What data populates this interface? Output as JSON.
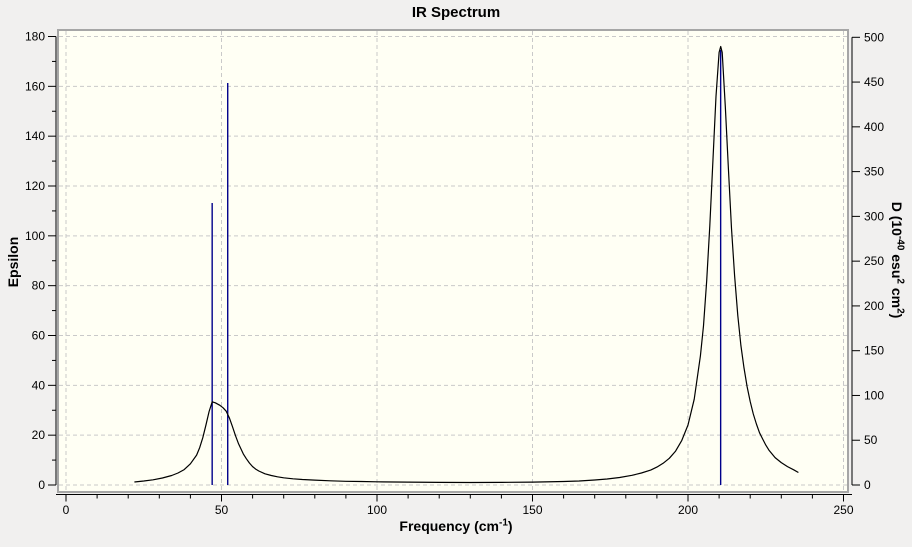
{
  "window": {
    "background": "#f1f0ef"
  },
  "chart_data": {
    "type": "line",
    "title": "IR Spectrum",
    "plot_bg": "#fffff4",
    "frame_color": "#a6a6a6",
    "axis_color": "#000000",
    "grid": {
      "style": "dashed",
      "color": "#c9c9c9"
    },
    "x_axis": {
      "label_parts": [
        {
          "t": "Frequency (cm"
        },
        {
          "t": "-1",
          "sup": true
        },
        {
          "t": ")"
        }
      ],
      "min": 0,
      "max": 250,
      "major_ticks": [
        0,
        50,
        100,
        150,
        200,
        250
      ],
      "minor_step": 10
    },
    "y_left": {
      "label": "Epsilon",
      "min": 0,
      "max": 180,
      "major_ticks": [
        0,
        20,
        40,
        60,
        80,
        100,
        120,
        140,
        160,
        180
      ],
      "minor_step": 10
    },
    "y_right": {
      "label_parts": [
        {
          "t": "D (10"
        },
        {
          "t": "-40",
          "sup": true
        },
        {
          "t": " esu"
        },
        {
          "t": "2",
          "sup": true
        },
        {
          "t": " cm"
        },
        {
          "t": "2",
          "sup": true
        },
        {
          "t": ")"
        }
      ],
      "min": 0,
      "max": 500,
      "major_ticks": [
        0,
        50,
        100,
        150,
        200,
        250,
        300,
        350,
        400,
        450,
        500
      ],
      "minor_step": 0
    },
    "series": [
      {
        "name": "dipole-strength-sticks",
        "type": "stick",
        "axis": "right",
        "color": "#00008b",
        "points": [
          [
            47,
            315
          ],
          [
            52,
            449
          ],
          [
            210.5,
            486
          ]
        ]
      },
      {
        "name": "epsilon-curve",
        "type": "line",
        "axis": "left",
        "color": "#000000",
        "points": [
          [
            22,
            1.2
          ],
          [
            25,
            1.6
          ],
          [
            28,
            2.1
          ],
          [
            31,
            2.8
          ],
          [
            34,
            3.8
          ],
          [
            36,
            4.8
          ],
          [
            38,
            6.2
          ],
          [
            40,
            8.5
          ],
          [
            42,
            12
          ],
          [
            43,
            15
          ],
          [
            44,
            19
          ],
          [
            45,
            24
          ],
          [
            46,
            29.5
          ],
          [
            47,
            33.4
          ],
          [
            48,
            33
          ],
          [
            49.5,
            32
          ],
          [
            50.5,
            31
          ],
          [
            51.5,
            29.6
          ],
          [
            52.5,
            27
          ],
          [
            53.5,
            23.5
          ],
          [
            54.5,
            19.8
          ],
          [
            55.5,
            16.5
          ],
          [
            57,
            12.5
          ],
          [
            58,
            10.5
          ],
          [
            59,
            8.8
          ],
          [
            60,
            7.4
          ],
          [
            61,
            6.4
          ],
          [
            62,
            5.6
          ],
          [
            64,
            4.5
          ],
          [
            66,
            3.8
          ],
          [
            68,
            3.3
          ],
          [
            70,
            2.9
          ],
          [
            73,
            2.5
          ],
          [
            76,
            2.2
          ],
          [
            80,
            1.95
          ],
          [
            85,
            1.7
          ],
          [
            90,
            1.5
          ],
          [
            95,
            1.4
          ],
          [
            100,
            1.3
          ],
          [
            110,
            1.15
          ],
          [
            120,
            1.05
          ],
          [
            130,
            1.0
          ],
          [
            140,
            1.05
          ],
          [
            150,
            1.15
          ],
          [
            160,
            1.4
          ],
          [
            165,
            1.6
          ],
          [
            170,
            2.0
          ],
          [
            174,
            2.4
          ],
          [
            178,
            3.0
          ],
          [
            182,
            3.9
          ],
          [
            185,
            4.8
          ],
          [
            188,
            6.0
          ],
          [
            190,
            7.2
          ],
          [
            192,
            8.7
          ],
          [
            194,
            10.7
          ],
          [
            196,
            13.6
          ],
          [
            198,
            17.9
          ],
          [
            200,
            24.1
          ],
          [
            202,
            34.4
          ],
          [
            204,
            51.8
          ],
          [
            205,
            63.9
          ],
          [
            206,
            82
          ],
          [
            207,
            104
          ],
          [
            208,
            130
          ],
          [
            209,
            156
          ],
          [
            210,
            173.6
          ],
          [
            210.5,
            176
          ],
          [
            211,
            173.6
          ],
          [
            212,
            152
          ],
          [
            213,
            127
          ],
          [
            214,
            103
          ],
          [
            215,
            84
          ],
          [
            216,
            68
          ],
          [
            217,
            56
          ],
          [
            218,
            47
          ],
          [
            219,
            39.5
          ],
          [
            220,
            33.5
          ],
          [
            221,
            28.5
          ],
          [
            222,
            24.5
          ],
          [
            223,
            21
          ],
          [
            224,
            18.5
          ],
          [
            225,
            16
          ],
          [
            226,
            14
          ],
          [
            227,
            12.5
          ],
          [
            228,
            11
          ],
          [
            230,
            9
          ],
          [
            232,
            7.4
          ],
          [
            234,
            6.1
          ],
          [
            235.5,
            5
          ]
        ]
      }
    ]
  }
}
